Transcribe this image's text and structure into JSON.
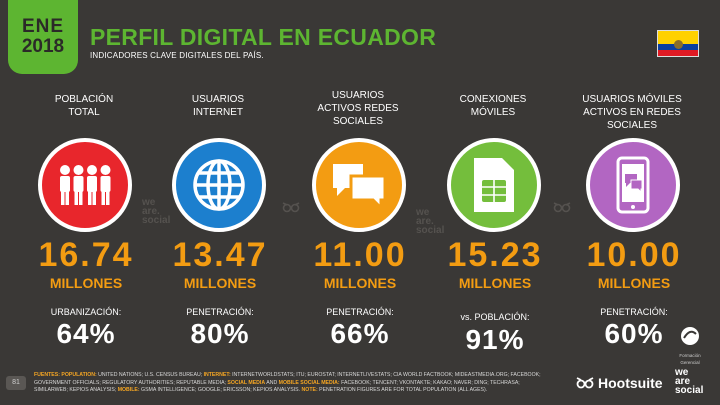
{
  "badge": {
    "month": "ENE",
    "year": "2018"
  },
  "header": {
    "title": "PERFIL DIGITAL EN ECUADOR",
    "subtitle": "INDICADORES CLAVE DIGITALES DEL PAÍS."
  },
  "colors": {
    "green": "#5db531",
    "red": "#e8262c",
    "blue": "#1c7fce",
    "orange": "#f39c12",
    "lime": "#74be3c",
    "purple": "#b266c2",
    "background": "#3a3836"
  },
  "metrics": [
    {
      "label_lines": [
        "POBLACIÓN",
        "TOTAL"
      ],
      "icon": "people-icon",
      "value": "16.74",
      "unit": "MILLONES",
      "sub_label": "URBANIZACIÓN:",
      "percent": "64%"
    },
    {
      "label_lines": [
        "USUARIOS",
        "INTERNET"
      ],
      "icon": "globe-icon",
      "value": "13.47",
      "unit": "MILLONES",
      "sub_label": "PENETRACIÓN:",
      "percent": "80%"
    },
    {
      "label_lines": [
        "USUARIOS",
        "ACTIVOS REDES",
        "SOCIALES"
      ],
      "icon": "chat-bubbles-icon",
      "value": "11.00",
      "unit": "MILLONES",
      "sub_label": "PENETRACIÓN:",
      "percent": "66%"
    },
    {
      "label_lines": [
        "CONEXIONES",
        "MÓVILES"
      ],
      "icon": "sim-card-icon",
      "value": "15.23",
      "unit": "MILLONES",
      "sub_label": "vs. POBLACIÓN:",
      "percent": "91%"
    },
    {
      "label_lines": [
        "USUARIOS MÓVILES",
        "ACTIVOS EN REDES",
        "SOCIALES"
      ],
      "icon": "smartphone-chat-icon",
      "value": "10.00",
      "unit": "MILLONES",
      "sub_label": "PENETRACIÓN:",
      "percent": "60%"
    }
  ],
  "watermark": {
    "line1": "we",
    "line2": "are.",
    "line3": "social"
  },
  "footer": {
    "page_number": "81",
    "sources": [
      {
        "key": "FUENTES: POPULATION:",
        "text": " UNITED NATIONS; U.S. CENSUS BUREAU; "
      },
      {
        "key": "INTERNET:",
        "text": " INTERNETWORLDSTATS; ITU; EUROSTAT; INTERNETLIVESTATS; CIA WORLD FACTBOOK; MIDEASTMEDIA.ORG; FACEBOOK; GOVERNMENT OFFICIALS; REGULATORY AUTHORITIES; REPUTABLE MEDIA; "
      },
      {
        "key": "SOCIAL MEDIA",
        "text": " AND "
      },
      {
        "key": "MOBILE SOCIAL MEDIA:",
        "text": " FACEBOOK; TENCENT; VKONTAKTE; KAKAO; NAVER; DING; TECHRASA; SIMILARWEB; KEPIOS ANALYSIS; "
      },
      {
        "key": "MOBILE:",
        "text": " GSMA INTELLIGENCE; GOOGLE; ERICSSON; KEPIOS ANALYSIS. "
      },
      {
        "key": "NOTE:",
        "text": " PENETRATION FIGURES ARE FOR TOTAL POPULATION (ALL AGES)."
      }
    ],
    "brand_hootsuite": "Hootsuite",
    "brand_was_line1": "we",
    "brand_was_line2": "are",
    "brand_was_line3": "social",
    "agency_line1": "Formación",
    "agency_line2": "Gerencial"
  }
}
